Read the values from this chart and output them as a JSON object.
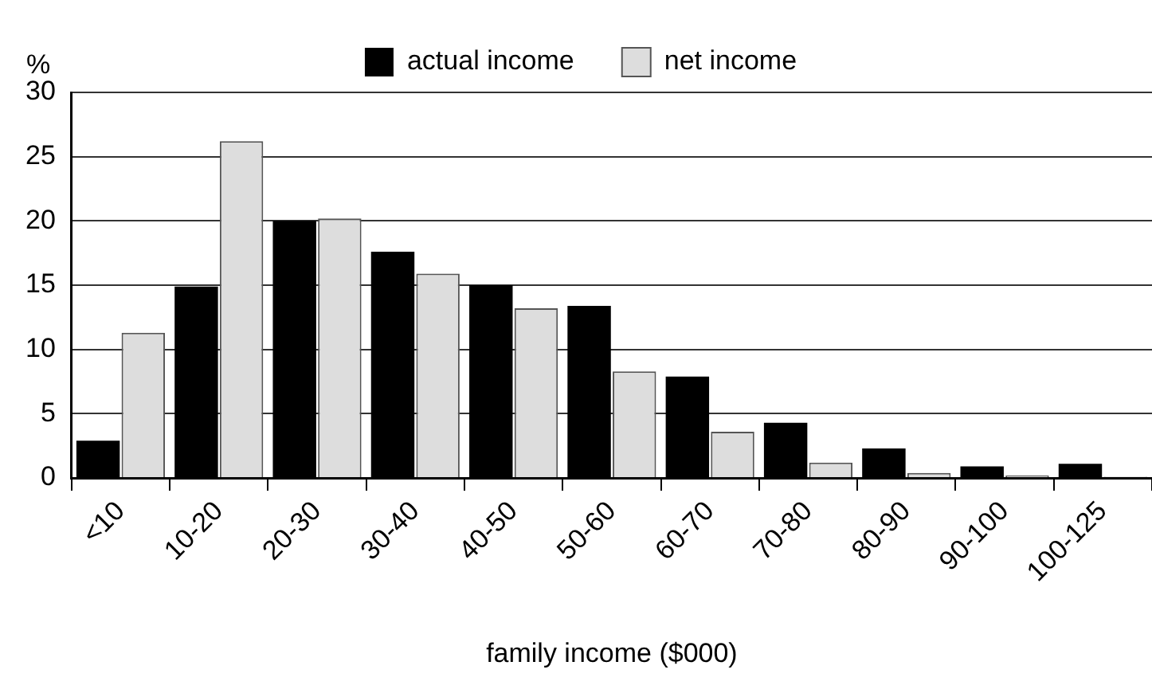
{
  "chart_data": {
    "type": "bar",
    "xlabel": "family income ($000)",
    "ylabel": "%",
    "categories": [
      "<10",
      "10-20",
      "20-30",
      "30-40",
      "40-50",
      "50-60",
      "60-70",
      "70-80",
      "80-90",
      "90-100",
      "100-125"
    ],
    "series": [
      {
        "name": "actual income",
        "color": "#000000",
        "values": [
          2.9,
          14.9,
          20.0,
          17.6,
          15.0,
          13.4,
          7.9,
          4.3,
          2.3,
          0.9,
          1.1
        ]
      },
      {
        "name": "net income",
        "color": "#dddddd",
        "values": [
          11.3,
          26.2,
          20.2,
          15.9,
          13.2,
          8.3,
          3.6,
          1.2,
          0.4,
          0.2,
          0.1
        ]
      }
    ],
    "ylim": [
      0,
      30
    ],
    "yticks": [
      0,
      5,
      10,
      15,
      20,
      25,
      30
    ],
    "grid": "y",
    "legend": "top"
  }
}
